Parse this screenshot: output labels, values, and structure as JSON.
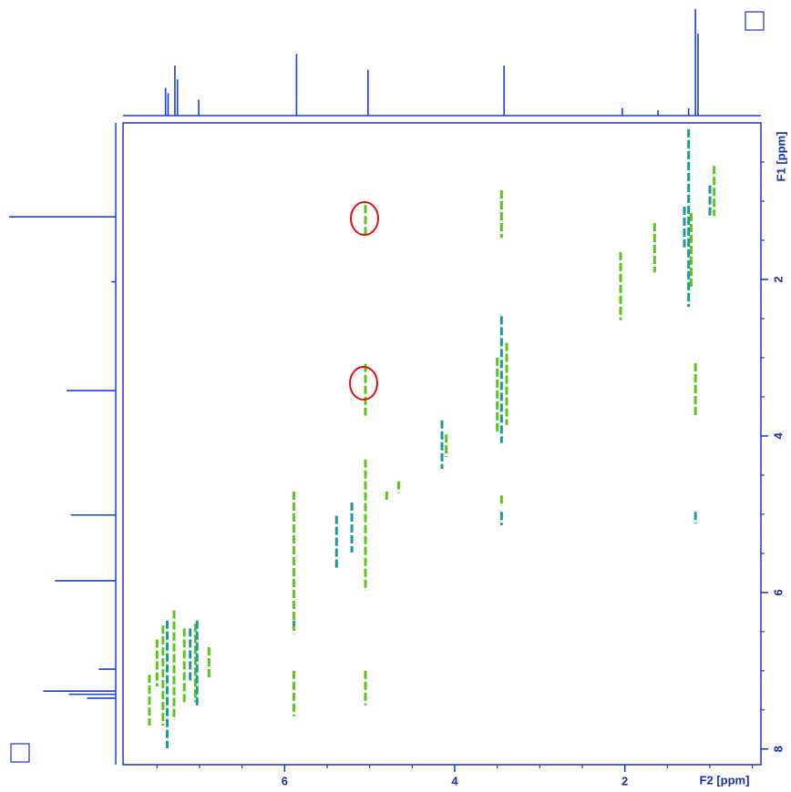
{
  "chart_data": {
    "type": "nmr2d",
    "x_label": "F2 [ppm]",
    "y_label": "F1 [ppm]",
    "xlim": [
      7.9,
      0.4
    ],
    "ylim": [
      0,
      8.2
    ],
    "xticks": [
      6,
      4,
      2
    ],
    "yticks": [
      2,
      4,
      6,
      8
    ],
    "xminorticks": [
      7.5,
      7,
      6.5,
      5.5,
      5,
      4.5,
      3.5,
      3,
      2.5,
      1.5,
      1,
      0.5
    ],
    "yminorticks": [
      0.5,
      1,
      1.5,
      2.5,
      3,
      3.5,
      4.5,
      5,
      5.5,
      6.5,
      7,
      7.5
    ],
    "axis_color": "#1a33cc",
    "projection_color": "#1a3ce0",
    "f2_projection": {
      "x": [
        7.4,
        7.37,
        7.29,
        7.26,
        7.01,
        5.86,
        5.02,
        3.42,
        2.03,
        1.61,
        1.25,
        1.17,
        1.14
      ],
      "heights": [
        26,
        21,
        47,
        34,
        15,
        58,
        43,
        47,
        7,
        5,
        7,
        100,
        77
      ]
    },
    "f1_projection": {
      "y": [
        1.2,
        2.03,
        3.42,
        5.01,
        5.85,
        6.98,
        7.26,
        7.3,
        7.35
      ],
      "heights": [
        100,
        4,
        46,
        42,
        57,
        16,
        68,
        44,
        27
      ]
    },
    "contours": [
      {
        "color": "#5cc41a",
        "peaks": [
          {
            "x": 5.05,
            "y": [
              1.05,
              1.44
            ]
          },
          {
            "x": 5.05,
            "y": [
              3.08,
              3.74
            ]
          },
          {
            "x": 5.05,
            "y": [
              4.3,
              5.98
            ]
          },
          {
            "x": 5.05,
            "y": [
              7.0,
              7.44
            ]
          },
          {
            "x": 5.89,
            "y": [
              4.71,
              6.53
            ]
          },
          {
            "x": 5.89,
            "y": [
              7.0,
              7.58
            ]
          },
          {
            "x": 4.8,
            "y": [
              4.71,
              4.85
            ]
          },
          {
            "x": 4.66,
            "y": [
              4.58,
              4.73
            ]
          },
          {
            "x": 4.1,
            "y": [
              3.98,
              4.27
            ]
          },
          {
            "x": 3.45,
            "y": [
              0.86,
              1.47
            ]
          },
          {
            "x": 3.45,
            "y": [
              4.76,
              4.87
            ]
          },
          {
            "x": 3.39,
            "y": [
              2.81,
              3.86
            ]
          },
          {
            "x": 3.5,
            "y": [
              3.0,
              3.95
            ]
          },
          {
            "x": 2.05,
            "y": [
              1.65,
              2.52
            ]
          },
          {
            "x": 1.65,
            "y": [
              1.28,
              1.91
            ]
          },
          {
            "x": 1.22,
            "y": [
              1.15,
              2.1
            ]
          },
          {
            "x": 1.17,
            "y": [
              3.07,
              3.77
            ]
          },
          {
            "x": 0.95,
            "y": [
              0.55,
              1.19
            ]
          },
          {
            "x": 7.43,
            "y": [
              6.42,
              7.7
            ]
          },
          {
            "x": 7.59,
            "y": [
              7.05,
              7.7
            ]
          },
          {
            "x": 7.3,
            "y": [
              6.23,
              7.63
            ]
          },
          {
            "x": 7.18,
            "y": [
              6.46,
              7.4
            ]
          },
          {
            "x": 7.05,
            "y": [
              6.4,
              7.4
            ]
          },
          {
            "x": 6.89,
            "y": [
              6.7,
              7.1
            ]
          },
          {
            "x": 7.5,
            "y": [
              6.6,
              7.2
            ]
          }
        ]
      },
      {
        "color": "#1a9a9a",
        "peaks": [
          {
            "x": 5.89,
            "y": [
              6.36,
              6.42
            ]
          },
          {
            "x": 5.39,
            "y": [
              5.02,
              5.7
            ]
          },
          {
            "x": 5.21,
            "y": [
              4.85,
              5.49
            ]
          },
          {
            "x": 4.15,
            "y": [
              3.8,
              4.42
            ]
          },
          {
            "x": 3.45,
            "y": [
              2.47,
              4.09
            ]
          },
          {
            "x": 3.45,
            "y": [
              4.97,
              5.14
            ]
          },
          {
            "x": 1.3,
            "y": [
              1.07,
              1.59
            ]
          },
          {
            "x": 1.25,
            "y": [
              0.08,
              2.35
            ]
          },
          {
            "x": 1.17,
            "y": [
              4.97,
              5.12
            ]
          },
          {
            "x": 1.0,
            "y": [
              0.8,
              1.19
            ]
          },
          {
            "x": 7.38,
            "y": [
              6.36,
              7.99
            ]
          },
          {
            "x": 7.03,
            "y": [
              6.36,
              7.47
            ]
          },
          {
            "x": 7.11,
            "y": [
              6.46,
              7.15
            ]
          }
        ]
      }
    ]
  }
}
